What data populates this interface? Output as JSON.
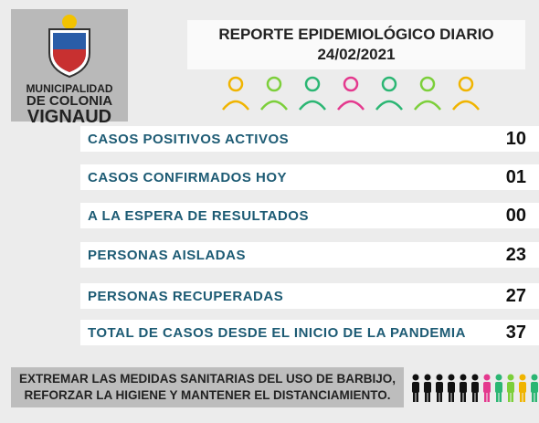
{
  "header": {
    "org": [
      "MUNICIPALIDAD",
      "DE COLONIA",
      "VIGNAUD"
    ],
    "title": "REPORTE EPIDEMIOLÓGICO DIARIO",
    "date": "24/02/2021"
  },
  "rows": [
    {
      "label": "CASOS POSITIVOS ACTIVOS",
      "value": "10"
    },
    {
      "label": "CASOS CONFIRMADOS HOY",
      "value": "01"
    },
    {
      "label": "A LA ESPERA DE RESULTADOS",
      "value": "00"
    },
    {
      "label": "PERSONAS AISLADAS",
      "value": "23"
    },
    {
      "label": "PERSONAS RECUPERADAS",
      "value": "27"
    },
    {
      "label": "TOTAL DE CASOS DESDE EL INICIO DE LA PANDEMIA",
      "value": "37"
    }
  ],
  "footer": [
    "EXTREMAR LAS MEDIDAS SANITARIAS DEL USO DE BARBIJO,",
    "REFORZAR LA HIGIENE Y MANTENER EL DISTANCIAMIENTO."
  ]
}
